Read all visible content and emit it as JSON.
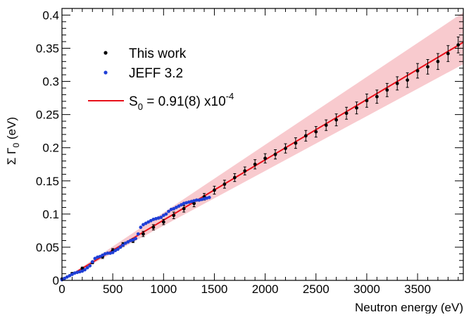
{
  "chart_data": {
    "type": "scatter",
    "title": "",
    "xlabel": "Neutron energy (eV)",
    "ylabel": "Σ Γ0 (eV)",
    "xlim": [
      0,
      3950
    ],
    "ylim": [
      0,
      0.41
    ],
    "x_ticks": [
      {
        "value": 0,
        "label": "0"
      },
      {
        "value": 500,
        "label": "500"
      },
      {
        "value": 1000,
        "label": "1000"
      },
      {
        "value": 1500,
        "label": "1500"
      },
      {
        "value": 2000,
        "label": "2000"
      },
      {
        "value": 2500,
        "label": "2500"
      },
      {
        "value": 3000,
        "label": "3000"
      },
      {
        "value": 3500,
        "label": "3500"
      }
    ],
    "y_ticks": [
      {
        "value": 0,
        "label": "0"
      },
      {
        "value": 0.05,
        "label": "0.05"
      },
      {
        "value": 0.1,
        "label": "0.1"
      },
      {
        "value": 0.15,
        "label": "0.15"
      },
      {
        "value": 0.2,
        "label": "0.2"
      },
      {
        "value": 0.25,
        "label": "0.25"
      },
      {
        "value": 0.3,
        "label": "0.3"
      },
      {
        "value": 0.35,
        "label": "0.35"
      },
      {
        "value": 0.4,
        "label": "0.4"
      }
    ],
    "legend": {
      "position": "top-left",
      "entries": [
        {
          "label": "This work",
          "marker": "dot",
          "color": "#000000"
        },
        {
          "label": "JEFF 3.2",
          "marker": "dot",
          "color": "#1f3fd6"
        },
        {
          "label": "S0  = 0.91(8) x10-4",
          "marker": "line",
          "color": "#e8101a"
        }
      ]
    },
    "fit": {
      "name": "S0 fit",
      "x": [
        0,
        3950
      ],
      "y": [
        0,
        0.359
      ],
      "band_lower": [
        0,
        0.326
      ],
      "band_upper": [
        0,
        0.404
      ],
      "line_color": "#e8101a",
      "band_color": "#f4a7ad"
    },
    "series": [
      {
        "name": "This work",
        "color": "#000000",
        "x": [
          0,
          100,
          200,
          300,
          400,
          500,
          600,
          700,
          800,
          900,
          1000,
          1100,
          1200,
          1300,
          1400,
          1500,
          1600,
          1700,
          1800,
          1900,
          2000,
          2100,
          2200,
          2300,
          2400,
          2500,
          2600,
          2700,
          2800,
          2900,
          3000,
          3100,
          3200,
          3300,
          3400,
          3500,
          3600,
          3700,
          3800,
          3900
        ],
        "y": [
          0.002,
          0.01,
          0.018,
          0.027,
          0.036,
          0.045,
          0.054,
          0.06,
          0.07,
          0.08,
          0.088,
          0.098,
          0.108,
          0.116,
          0.126,
          0.136,
          0.145,
          0.155,
          0.165,
          0.175,
          0.184,
          0.19,
          0.199,
          0.207,
          0.218,
          0.224,
          0.234,
          0.242,
          0.252,
          0.26,
          0.271,
          0.277,
          0.287,
          0.297,
          0.302,
          0.316,
          0.322,
          0.33,
          0.342,
          0.355
        ],
        "yerr": [
          0.001,
          0.002,
          0.002,
          0.002,
          0.003,
          0.003,
          0.003,
          0.003,
          0.004,
          0.004,
          0.004,
          0.005,
          0.005,
          0.005,
          0.005,
          0.006,
          0.006,
          0.006,
          0.006,
          0.007,
          0.007,
          0.007,
          0.007,
          0.008,
          0.008,
          0.008,
          0.008,
          0.009,
          0.009,
          0.009,
          0.01,
          0.01,
          0.01,
          0.01,
          0.011,
          0.011,
          0.011,
          0.012,
          0.012,
          0.012
        ]
      },
      {
        "name": "JEFF 3.2",
        "color": "#1f3fd6",
        "x": [
          0,
          25,
          50,
          75,
          100,
          125,
          150,
          175,
          200,
          225,
          250,
          275,
          300,
          325,
          350,
          375,
          400,
          425,
          450,
          475,
          500,
          525,
          550,
          575,
          600,
          625,
          650,
          675,
          700,
          725,
          750,
          775,
          800,
          825,
          850,
          875,
          900,
          925,
          950,
          975,
          1000,
          1025,
          1050,
          1075,
          1100,
          1125,
          1150,
          1175,
          1200,
          1225,
          1250,
          1275,
          1300,
          1325,
          1350,
          1375,
          1400,
          1425,
          1450
        ],
        "y": [
          0.001,
          0.003,
          0.005,
          0.007,
          0.009,
          0.011,
          0.012,
          0.013,
          0.014,
          0.016,
          0.019,
          0.022,
          0.028,
          0.033,
          0.035,
          0.036,
          0.038,
          0.04,
          0.041,
          0.041,
          0.042,
          0.045,
          0.047,
          0.05,
          0.053,
          0.056,
          0.058,
          0.06,
          0.061,
          0.063,
          0.07,
          0.08,
          0.084,
          0.086,
          0.088,
          0.09,
          0.092,
          0.093,
          0.094,
          0.095,
          0.098,
          0.1,
          0.104,
          0.107,
          0.108,
          0.11,
          0.112,
          0.114,
          0.116,
          0.117,
          0.118,
          0.119,
          0.12,
          0.121,
          0.121,
          0.122,
          0.123,
          0.124,
          0.125
        ]
      }
    ]
  }
}
